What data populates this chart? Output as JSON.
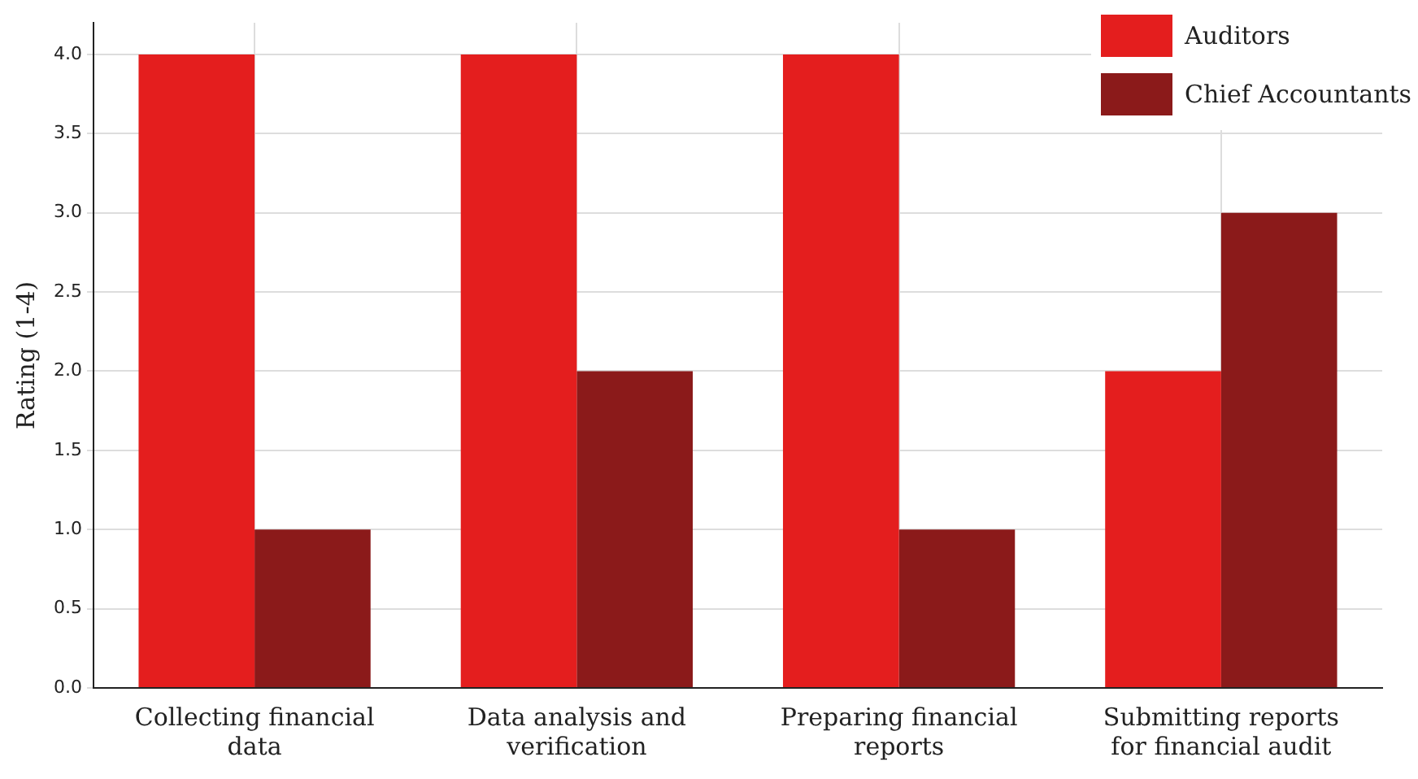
{
  "chart_data": {
    "type": "bar",
    "ylabel": "Rating (1-4)",
    "categories": [
      "Collecting financial data",
      "Data analysis and verification",
      "Preparing financial reports",
      "Submitting reports for financial audit"
    ],
    "series": [
      {
        "name": "Auditors",
        "color": "#e41e1e",
        "values": [
          4,
          4,
          4,
          2
        ]
      },
      {
        "name": "Chief Accountants",
        "color": "#8b1a1a",
        "values": [
          1,
          2,
          1,
          3
        ]
      }
    ],
    "ylim": [
      0,
      4.2
    ],
    "yticks": [
      {
        "value": 0,
        "label": "0.0"
      },
      {
        "value": 0.5,
        "label": "0.5"
      },
      {
        "value": 1,
        "label": "1.0"
      },
      {
        "value": 1.5,
        "label": "1.5"
      },
      {
        "value": 2,
        "label": "2.0"
      },
      {
        "value": 2.5,
        "label": "2.5"
      },
      {
        "value": 3,
        "label": "3.0"
      },
      {
        "value": 3.5,
        "label": "3.5"
      },
      {
        "value": 4,
        "label": "4.0"
      }
    ],
    "grid": true,
    "legend": "top right"
  }
}
